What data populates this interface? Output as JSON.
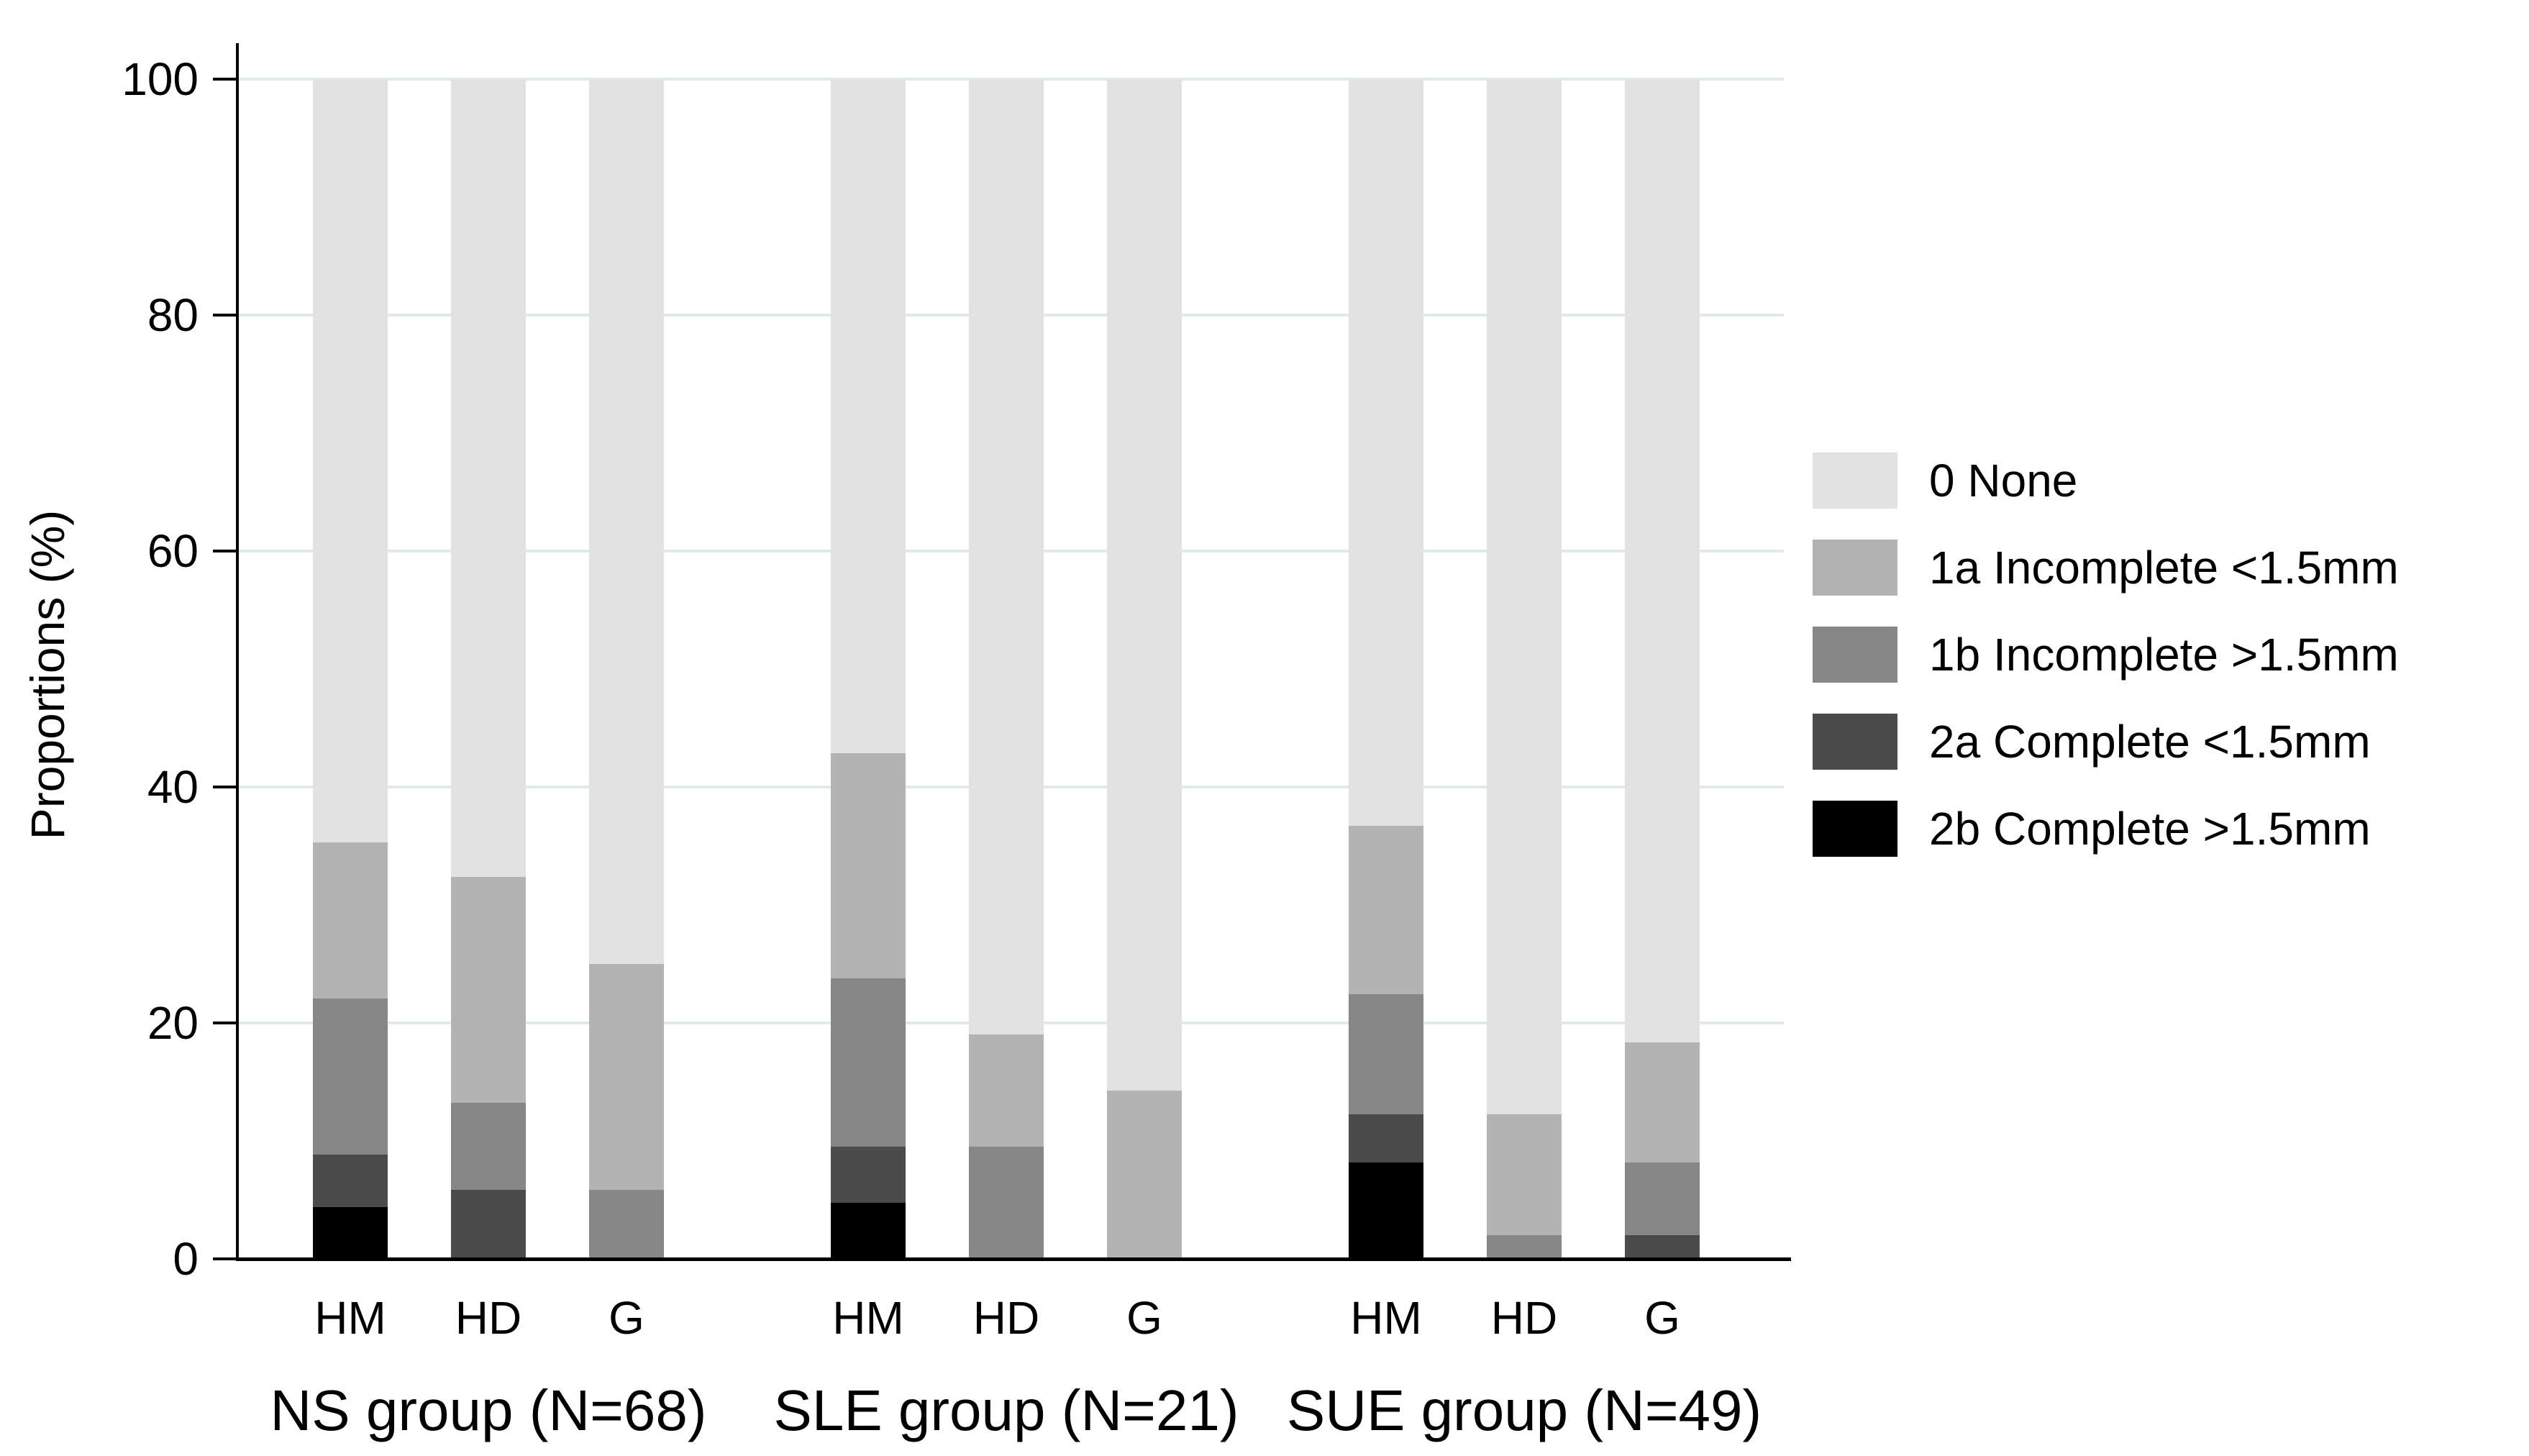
{
  "chart_data": {
    "type": "bar",
    "stacked": true,
    "title": "",
    "ylabel": "Proportions (%)",
    "ylim": [
      0,
      100
    ],
    "yticks": [
      0,
      20,
      40,
      60,
      80,
      100
    ],
    "grid": "horizontal light gridlines at y ticks",
    "legend_position": "right, outside plot",
    "axis_color": "#000000",
    "gridline_color": "#dfeaea",
    "background_color": "#ffffff",
    "stack_order_bottom_to_top": [
      "2b",
      "2a",
      "1b",
      "1a",
      "none"
    ],
    "legend": [
      {
        "key": "none",
        "label": "0 None",
        "color": "#e2e2e2"
      },
      {
        "key": "1a",
        "label": "1a Incomplete <1.5mm",
        "color": "#b3b3b3"
      },
      {
        "key": "1b",
        "label": "1b Incomplete >1.5mm",
        "color": "#878787"
      },
      {
        "key": "2a",
        "label": "2a Complete <1.5mm",
        "color": "#4b4b4b"
      },
      {
        "key": "2b",
        "label": "2b Complete >1.5mm",
        "color": "#000000"
      }
    ],
    "groups": [
      {
        "label": "NS group (N=68)",
        "bars": [
          {
            "label": "HM",
            "segments": {
              "2b": 4.41,
              "2a": 4.41,
              "1b": 13.24,
              "1a": 13.24,
              "none": 64.7
            }
          },
          {
            "label": "HD",
            "segments": {
              "2b": 0,
              "2a": 5.88,
              "1b": 7.35,
              "1a": 19.12,
              "none": 67.65
            }
          },
          {
            "label": "G",
            "segments": {
              "2b": 0,
              "2a": 0,
              "1b": 5.88,
              "1a": 19.12,
              "none": 75.0
            }
          }
        ]
      },
      {
        "label": "SLE group (N=21)",
        "bars": [
          {
            "label": "HM",
            "segments": {
              "2b": 4.76,
              "2a": 4.76,
              "1b": 14.29,
              "1a": 19.05,
              "none": 57.14
            }
          },
          {
            "label": "HD",
            "segments": {
              "2b": 0,
              "2a": 0,
              "1b": 9.52,
              "1a": 9.52,
              "none": 80.96
            }
          },
          {
            "label": "G",
            "segments": {
              "2b": 0,
              "2a": 0,
              "1b": 0,
              "1a": 14.29,
              "none": 85.71
            }
          }
        ]
      },
      {
        "label": "SUE group (N=49)",
        "bars": [
          {
            "label": "HM",
            "segments": {
              "2b": 8.16,
              "2a": 4.08,
              "1b": 10.2,
              "1a": 14.29,
              "none": 63.27
            }
          },
          {
            "label": "HD",
            "segments": {
              "2b": 0,
              "2a": 0,
              "1b": 2.04,
              "1a": 10.2,
              "none": 87.76
            }
          },
          {
            "label": "G",
            "segments": {
              "2b": 0,
              "2a": 2.04,
              "1b": 6.12,
              "1a": 10.2,
              "none": 81.64
            }
          }
        ]
      }
    ]
  }
}
